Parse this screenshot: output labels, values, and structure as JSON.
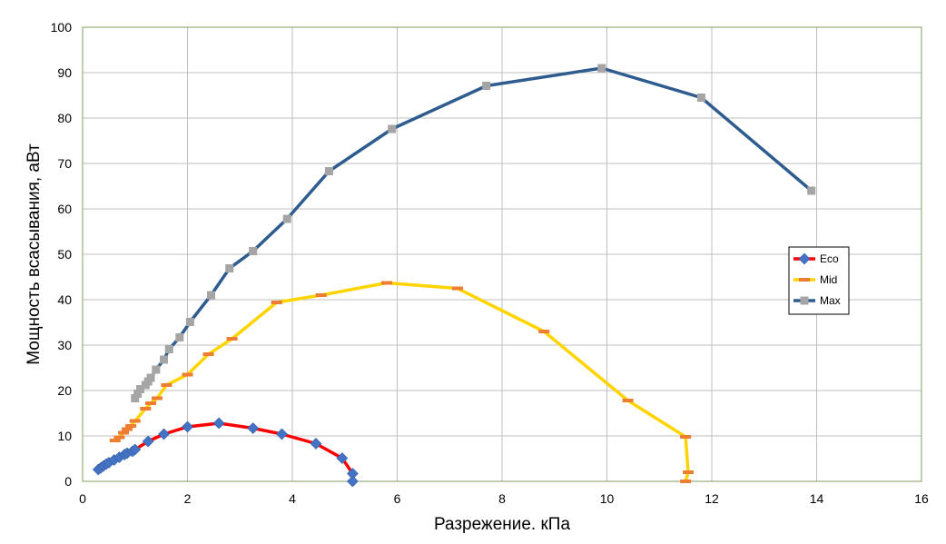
{
  "chart_data": {
    "type": "line",
    "title": "",
    "xlabel": "Разрежение. кПа",
    "ylabel": "Мощность всасывания, аВт",
    "xlim": [
      0,
      16
    ],
    "ylim": [
      0,
      100
    ],
    "xticks": [
      0,
      2,
      4,
      6,
      8,
      10,
      12,
      14,
      16
    ],
    "yticks": [
      0,
      10,
      20,
      30,
      40,
      50,
      60,
      70,
      80,
      90,
      100
    ],
    "grid": true,
    "legend_position": "right",
    "series": [
      {
        "name": "Eco",
        "color": "#ff0000",
        "marker": "diamond",
        "marker_color": "#4472c4",
        "points": [
          [
            0.3,
            2.6
          ],
          [
            0.35,
            3.0
          ],
          [
            0.4,
            3.4
          ],
          [
            0.45,
            3.8
          ],
          [
            0.5,
            4.1
          ],
          [
            0.6,
            4.7
          ],
          [
            0.7,
            5.3
          ],
          [
            0.8,
            5.9
          ],
          [
            0.85,
            6.2
          ],
          [
            0.95,
            6.6
          ],
          [
            1.0,
            7.0
          ],
          [
            1.25,
            8.8
          ],
          [
            1.55,
            10.4
          ],
          [
            2.0,
            12.0
          ],
          [
            2.6,
            12.8
          ],
          [
            3.25,
            11.7
          ],
          [
            3.8,
            10.4
          ],
          [
            4.45,
            8.3
          ],
          [
            4.95,
            5.1
          ],
          [
            5.15,
            1.7
          ],
          [
            5.15,
            0.0
          ]
        ]
      },
      {
        "name": "Mid",
        "color": "#ffd400",
        "marker": "dash",
        "marker_color": "#ed7d31",
        "points": [
          [
            0.62,
            9.0
          ],
          [
            0.7,
            9.7
          ],
          [
            0.78,
            10.7
          ],
          [
            0.85,
            11.5
          ],
          [
            0.92,
            12.2
          ],
          [
            1.0,
            13.3
          ],
          [
            1.2,
            16.0
          ],
          [
            1.3,
            17.2
          ],
          [
            1.42,
            18.3
          ],
          [
            1.6,
            21.2
          ],
          [
            2.0,
            23.5
          ],
          [
            2.4,
            28.0
          ],
          [
            2.85,
            31.4
          ],
          [
            3.7,
            39.4
          ],
          [
            4.55,
            41.0
          ],
          [
            5.8,
            43.7
          ],
          [
            7.15,
            42.5
          ],
          [
            8.8,
            33.0
          ],
          [
            10.4,
            17.8
          ],
          [
            11.5,
            9.8
          ],
          [
            11.55,
            2.0
          ],
          [
            11.5,
            0.0
          ]
        ]
      },
      {
        "name": "Max",
        "color": "#2e5c8f",
        "marker": "square",
        "marker_color": "#a5a5a5",
        "points": [
          [
            1.0,
            18.3
          ],
          [
            1.05,
            19.3
          ],
          [
            1.1,
            20.3
          ],
          [
            1.2,
            21.2
          ],
          [
            1.25,
            22.0
          ],
          [
            1.3,
            22.8
          ],
          [
            1.4,
            24.6
          ],
          [
            1.55,
            26.8
          ],
          [
            1.65,
            29.1
          ],
          [
            1.85,
            31.7
          ],
          [
            2.05,
            35.1
          ],
          [
            2.45,
            41.0
          ],
          [
            2.8,
            46.9
          ],
          [
            3.25,
            50.7
          ],
          [
            3.9,
            57.8
          ],
          [
            4.7,
            68.3
          ],
          [
            5.9,
            77.6
          ],
          [
            7.7,
            87.1
          ],
          [
            9.9,
            91.0
          ],
          [
            11.8,
            84.5
          ],
          [
            13.9,
            64.0
          ]
        ]
      }
    ]
  }
}
